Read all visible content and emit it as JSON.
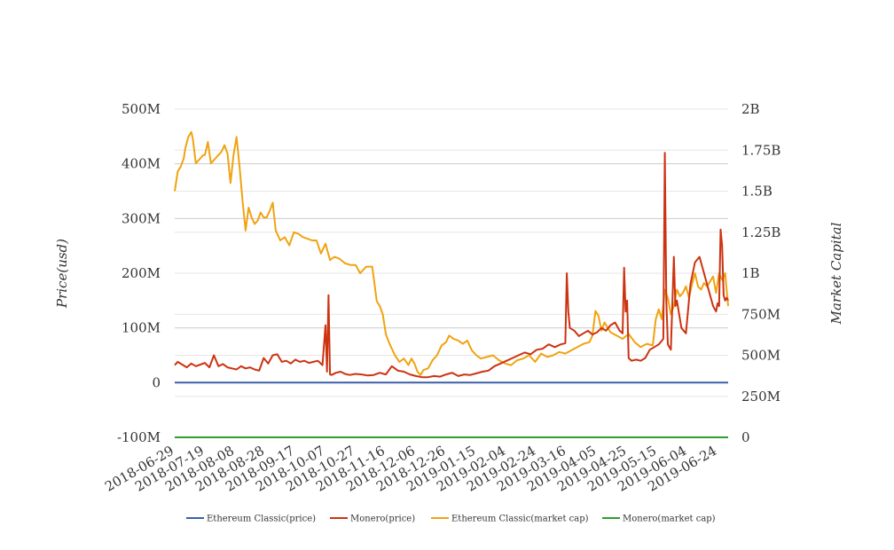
{
  "chart_data": {
    "type": "line",
    "title": "",
    "ylabel": "Price(usd)",
    "ylabel_right": "Market Capital",
    "x_ticks": [
      "2018-06-29",
      "2018-07-19",
      "2018-08-08",
      "2018-08-28",
      "2018-09-17",
      "2018-10-07",
      "2018-10-27",
      "2018-11-16",
      "2018-12-06",
      "2018-12-26",
      "2019-01-15",
      "2019-02-04",
      "2019-02-24",
      "2019-03-16",
      "2019-04-05",
      "2019-04-25",
      "2019-05-15",
      "2019-06-04",
      "2019-06-24"
    ],
    "xlim": [
      "2018-06-29",
      "2019-07-01"
    ],
    "ylim_left": [
      -100000000,
      500000000
    ],
    "ylim_right": [
      0,
      2000000000
    ],
    "y_ticks_left": [
      "-100M",
      "0",
      "100M",
      "200M",
      "300M",
      "400M",
      "500M"
    ],
    "y_ticks_right": [
      "0",
      "250M",
      "500M",
      "750M",
      "1B",
      "1.25B",
      "1.5B",
      "1.75B",
      "2B"
    ],
    "grid": true,
    "legend_position": "bottom",
    "series": [
      {
        "name": "Ethereum Classic(price)",
        "axis": "left",
        "color": "#3b5fa8",
        "x": [
          "2018-06-29",
          "2019-07-01"
        ],
        "y": [
          0,
          0
        ]
      },
      {
        "name": "Monero(price)",
        "axis": "left",
        "color": "#cc3311",
        "x": [
          "2018-06-29",
          "2018-07-01",
          "2018-07-04",
          "2018-07-07",
          "2018-07-10",
          "2018-07-13",
          "2018-07-16",
          "2018-07-19",
          "2018-07-22",
          "2018-07-25",
          "2018-07-28",
          "2018-07-31",
          "2018-08-03",
          "2018-08-06",
          "2018-08-09",
          "2018-08-12",
          "2018-08-15",
          "2018-08-18",
          "2018-08-21",
          "2018-08-24",
          "2018-08-27",
          "2018-08-30",
          "2018-09-02",
          "2018-09-05",
          "2018-09-08",
          "2018-09-11",
          "2018-09-14",
          "2018-09-17",
          "2018-09-20",
          "2018-09-23",
          "2018-09-26",
          "2018-09-29",
          "2018-10-02",
          "2018-10-05",
          "2018-10-07",
          "2018-10-08",
          "2018-10-09",
          "2018-10-10",
          "2018-10-11",
          "2018-10-14",
          "2018-10-17",
          "2018-10-20",
          "2018-10-23",
          "2018-10-27",
          "2018-10-31",
          "2018-11-04",
          "2018-11-08",
          "2018-11-12",
          "2018-11-16",
          "2018-11-20",
          "2018-11-24",
          "2018-11-28",
          "2018-12-02",
          "2018-12-06",
          "2018-12-10",
          "2018-12-14",
          "2018-12-18",
          "2018-12-22",
          "2018-12-26",
          "2018-12-30",
          "2019-01-03",
          "2019-01-07",
          "2019-01-11",
          "2019-01-15",
          "2019-01-19",
          "2019-01-23",
          "2019-01-27",
          "2019-01-31",
          "2019-02-04",
          "2019-02-08",
          "2019-02-12",
          "2019-02-16",
          "2019-02-20",
          "2019-02-24",
          "2019-02-28",
          "2019-03-04",
          "2019-03-08",
          "2019-03-12",
          "2019-03-15",
          "2019-03-16",
          "2019-03-17",
          "2019-03-18",
          "2019-03-21",
          "2019-03-24",
          "2019-03-27",
          "2019-03-30",
          "2019-04-02",
          "2019-04-05",
          "2019-04-08",
          "2019-04-11",
          "2019-04-14",
          "2019-04-17",
          "2019-04-20",
          "2019-04-22",
          "2019-04-23",
          "2019-04-24",
          "2019-04-25",
          "2019-04-26",
          "2019-04-28",
          "2019-05-01",
          "2019-05-04",
          "2019-05-07",
          "2019-05-10",
          "2019-05-13",
          "2019-05-16",
          "2019-05-19",
          "2019-05-20",
          "2019-05-21",
          "2019-05-22",
          "2019-05-24",
          "2019-05-26",
          "2019-05-27",
          "2019-05-28",
          "2019-05-31",
          "2019-06-03",
          "2019-06-06",
          "2019-06-09",
          "2019-06-12",
          "2019-06-15",
          "2019-06-18",
          "2019-06-21",
          "2019-06-23",
          "2019-06-24",
          "2019-06-25",
          "2019-06-26",
          "2019-06-27",
          "2019-06-28",
          "2019-06-29",
          "2019-06-30",
          "2019-07-01"
        ],
        "y": [
          32000000,
          38000000,
          33000000,
          28000000,
          35000000,
          30000000,
          33000000,
          36000000,
          28000000,
          50000000,
          30000000,
          34000000,
          28000000,
          26000000,
          24000000,
          30000000,
          26000000,
          28000000,
          24000000,
          22000000,
          45000000,
          35000000,
          50000000,
          52000000,
          38000000,
          40000000,
          35000000,
          42000000,
          38000000,
          40000000,
          36000000,
          38000000,
          40000000,
          32000000,
          105000000,
          20000000,
          160000000,
          15000000,
          14000000,
          18000000,
          20000000,
          16000000,
          14000000,
          16000000,
          15000000,
          13000000,
          14000000,
          18000000,
          15000000,
          30000000,
          22000000,
          20000000,
          15000000,
          12000000,
          10000000,
          10000000,
          12000000,
          11000000,
          15000000,
          18000000,
          12000000,
          15000000,
          14000000,
          17000000,
          20000000,
          22000000,
          30000000,
          35000000,
          40000000,
          45000000,
          50000000,
          55000000,
          52000000,
          60000000,
          62000000,
          70000000,
          65000000,
          70000000,
          72000000,
          200000000,
          130000000,
          100000000,
          95000000,
          85000000,
          90000000,
          95000000,
          88000000,
          92000000,
          100000000,
          95000000,
          105000000,
          110000000,
          95000000,
          90000000,
          210000000,
          130000000,
          150000000,
          45000000,
          40000000,
          42000000,
          40000000,
          45000000,
          60000000,
          65000000,
          70000000,
          80000000,
          420000000,
          150000000,
          70000000,
          60000000,
          230000000,
          140000000,
          150000000,
          100000000,
          90000000,
          180000000,
          220000000,
          230000000,
          200000000,
          170000000,
          140000000,
          130000000,
          145000000,
          140000000,
          280000000,
          250000000,
          160000000,
          150000000,
          155000000,
          150000000
        ]
      },
      {
        "name": "Ethereum Classic(market cap)",
        "axis": "right",
        "color": "#f0a311",
        "x": [
          "2018-06-29",
          "2018-07-01",
          "2018-07-03",
          "2018-07-05",
          "2018-07-06",
          "2018-07-08",
          "2018-07-10",
          "2018-07-11",
          "2018-07-13",
          "2018-07-16",
          "2018-07-18",
          "2018-07-19",
          "2018-07-21",
          "2018-07-23",
          "2018-07-25",
          "2018-07-27",
          "2018-07-30",
          "2018-08-01",
          "2018-08-03",
          "2018-08-05",
          "2018-08-07",
          "2018-08-09",
          "2018-08-11",
          "2018-08-13",
          "2018-08-15",
          "2018-08-17",
          "2018-08-19",
          "2018-08-21",
          "2018-08-23",
          "2018-08-25",
          "2018-08-27",
          "2018-08-29",
          "2018-08-31",
          "2018-09-02",
          "2018-09-04",
          "2018-09-07",
          "2018-09-10",
          "2018-09-13",
          "2018-09-16",
          "2018-09-19",
          "2018-09-22",
          "2018-09-25",
          "2018-09-28",
          "2018-10-01",
          "2018-10-04",
          "2018-10-07",
          "2018-10-10",
          "2018-10-13",
          "2018-10-16",
          "2018-10-20",
          "2018-10-24",
          "2018-10-27",
          "2018-10-30",
          "2018-11-03",
          "2018-11-07",
          "2018-11-10",
          "2018-11-12",
          "2018-11-14",
          "2018-11-16",
          "2018-11-18",
          "2018-11-20",
          "2018-11-22",
          "2018-11-25",
          "2018-11-28",
          "2018-12-01",
          "2018-12-03",
          "2018-12-05",
          "2018-12-07",
          "2018-12-09",
          "2018-12-11",
          "2018-12-14",
          "2018-12-17",
          "2018-12-20",
          "2018-12-23",
          "2018-12-26",
          "2018-12-28",
          "2018-12-31",
          "2019-01-03",
          "2019-01-06",
          "2019-01-09",
          "2019-01-12",
          "2019-01-15",
          "2019-01-18",
          "2019-01-22",
          "2019-01-26",
          "2019-01-30",
          "2019-02-03",
          "2019-02-07",
          "2019-02-11",
          "2019-02-15",
          "2019-02-19",
          "2019-02-23",
          "2019-02-27",
          "2019-03-03",
          "2019-03-07",
          "2019-03-11",
          "2019-03-15",
          "2019-03-19",
          "2019-03-23",
          "2019-03-27",
          "2019-03-31",
          "2019-04-02",
          "2019-04-04",
          "2019-04-06",
          "2019-04-08",
          "2019-04-10",
          "2019-04-14",
          "2019-04-18",
          "2019-04-22",
          "2019-04-26",
          "2019-04-30",
          "2019-05-04",
          "2019-05-08",
          "2019-05-12",
          "2019-05-14",
          "2019-05-16",
          "2019-05-18",
          "2019-05-20",
          "2019-05-22",
          "2019-05-24",
          "2019-05-26",
          "2019-05-28",
          "2019-05-30",
          "2019-06-01",
          "2019-06-03",
          "2019-06-05",
          "2019-06-07",
          "2019-06-09",
          "2019-06-11",
          "2019-06-13",
          "2019-06-15",
          "2019-06-17",
          "2019-06-19",
          "2019-06-21",
          "2019-06-23",
          "2019-06-25",
          "2019-06-27",
          "2019-06-29",
          "2019-07-01"
        ],
        "y": [
          1500000000,
          1620000000,
          1650000000,
          1700000000,
          1760000000,
          1830000000,
          1860000000,
          1820000000,
          1670000000,
          1700000000,
          1720000000,
          1720000000,
          1800000000,
          1670000000,
          1690000000,
          1710000000,
          1740000000,
          1780000000,
          1730000000,
          1550000000,
          1720000000,
          1830000000,
          1650000000,
          1440000000,
          1260000000,
          1400000000,
          1340000000,
          1300000000,
          1320000000,
          1370000000,
          1340000000,
          1340000000,
          1380000000,
          1430000000,
          1260000000,
          1200000000,
          1220000000,
          1170000000,
          1250000000,
          1240000000,
          1220000000,
          1210000000,
          1200000000,
          1200000000,
          1120000000,
          1180000000,
          1080000000,
          1100000000,
          1090000000,
          1060000000,
          1050000000,
          1050000000,
          1000000000,
          1040000000,
          1040000000,
          830000000,
          800000000,
          750000000,
          630000000,
          580000000,
          540000000,
          500000000,
          460000000,
          480000000,
          440000000,
          480000000,
          450000000,
          400000000,
          380000000,
          410000000,
          420000000,
          470000000,
          500000000,
          560000000,
          580000000,
          620000000,
          600000000,
          590000000,
          570000000,
          590000000,
          530000000,
          500000000,
          480000000,
          490000000,
          500000000,
          470000000,
          450000000,
          440000000,
          470000000,
          480000000,
          500000000,
          460000000,
          510000000,
          490000000,
          500000000,
          520000000,
          510000000,
          530000000,
          550000000,
          570000000,
          580000000,
          620000000,
          770000000,
          740000000,
          650000000,
          700000000,
          640000000,
          620000000,
          600000000,
          630000000,
          580000000,
          550000000,
          570000000,
          560000000,
          720000000,
          780000000,
          720000000,
          900000000,
          850000000,
          750000000,
          800000000,
          900000000,
          860000000,
          880000000,
          920000000,
          850000000,
          930000000,
          1000000000,
          920000000,
          900000000,
          940000000,
          920000000,
          950000000,
          980000000,
          880000000,
          1000000000,
          960000000,
          1000000000,
          800000000
        ]
      },
      {
        "name": "Monero(market cap)",
        "axis": "right",
        "color": "#2ca02c",
        "x": [
          "2018-06-29",
          "2019-07-01"
        ],
        "y": [
          0,
          0
        ]
      }
    ]
  }
}
